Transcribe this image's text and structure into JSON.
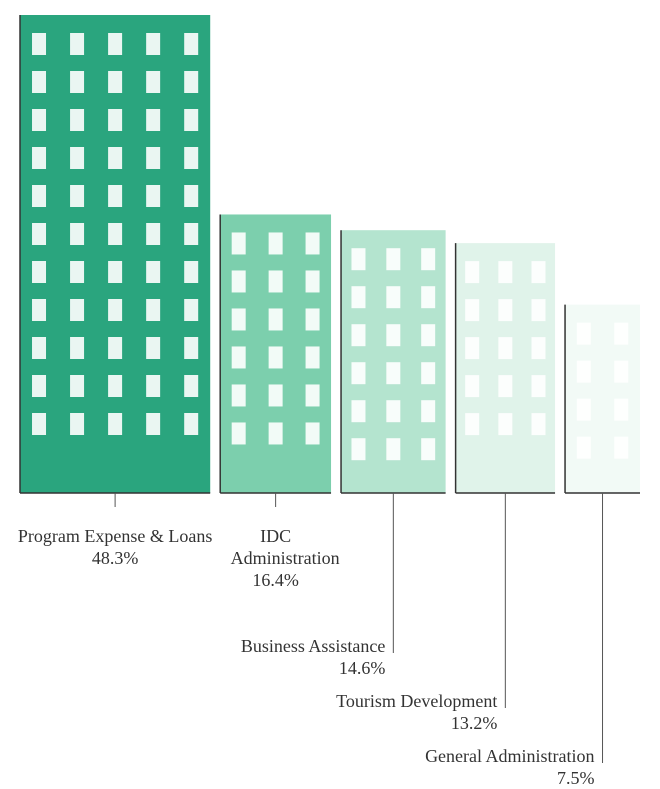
{
  "chart_data": {
    "type": "pictorial",
    "categories": [
      "Program Expense & Loans",
      "IDC Administration",
      "Business Assistance",
      "Tourism Development",
      "General Administration"
    ],
    "values": [
      48.3,
      16.4,
      14.6,
      13.2,
      7.5
    ],
    "value_labels": [
      "48.3%",
      "16.4%",
      "14.6%",
      "13.2%",
      "7.5%"
    ],
    "colors": [
      "#2aa57e",
      "#7ccfad",
      "#b4e4cf",
      "#e0f3ea",
      "#f2faf6"
    ]
  }
}
